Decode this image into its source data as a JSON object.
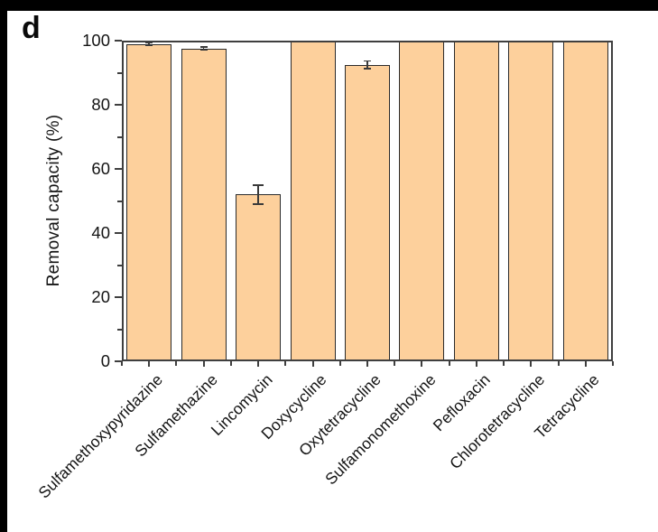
{
  "panel_label": "d",
  "chart_data": {
    "type": "bar",
    "title": "",
    "xlabel": "",
    "ylabel": "Removal capacity (%)",
    "ylim": [
      0,
      100
    ],
    "yticks_major": [
      0,
      20,
      40,
      60,
      80,
      100
    ],
    "yticks_minor": [
      10,
      30,
      50,
      70,
      90
    ],
    "grid": false,
    "legend_position": "none",
    "categories": [
      "Sulfamethoxypyridazine",
      "Sulfamethazine",
      "Lincomycin",
      "Doxycycline",
      "Oxytetracycline",
      "Sulfamonomethoxine",
      "Pefloxacin",
      "Chlorotetracycline",
      "Tetracycline"
    ],
    "values": [
      99.0,
      97.5,
      52.0,
      100.0,
      92.5,
      100.0,
      100.0,
      100.0,
      100.0
    ],
    "errors": [
      0.5,
      0.5,
      3.0,
      0.0,
      1.2,
      0.0,
      0.0,
      0.0,
      0.0
    ],
    "bar_color": "#fdd09c",
    "bar_border_color": "#2b2b2b",
    "axis_color": "#3f3f3f",
    "error_bar_color": "#3a3a3a",
    "text_color": "#141414",
    "frame_band_color": "#000000"
  }
}
